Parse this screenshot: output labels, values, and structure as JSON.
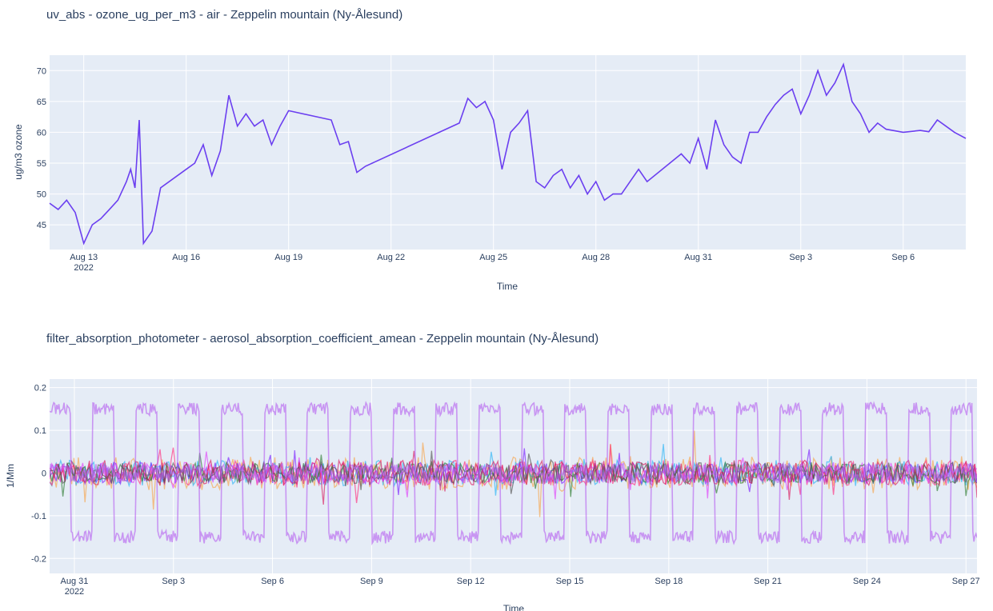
{
  "charts": [
    {
      "title": "uv_abs - ozone_ug_per_m3 - air - Zeppelin mountain (Ny-Ålesund)",
      "xlabel": "Time",
      "ylabel": "ug/m3 ozone"
    },
    {
      "title": "filter_absorption_photometer - aerosol_absorption_coefficient_amean - Zeppelin mountain (Ny-Ålesund)",
      "xlabel": "Time",
      "ylabel": "1/Mm"
    }
  ],
  "chart_data": [
    {
      "type": "line",
      "title": "uv_abs - ozone_ug_per_m3 - air - Zeppelin mountain (Ny-Ålesund)",
      "xlabel": "Time",
      "ylabel": "ug/m3 ozone",
      "xlim": [
        "2022-08-12",
        "2022-09-07 20:00"
      ],
      "ylim": [
        41,
        72.5
      ],
      "x_ticks": [
        {
          "date": "2022-08-13",
          "label": "Aug 13",
          "sublabel": "2022"
        },
        {
          "date": "2022-08-16",
          "label": "Aug 16"
        },
        {
          "date": "2022-08-19",
          "label": "Aug 19"
        },
        {
          "date": "2022-08-22",
          "label": "Aug 22"
        },
        {
          "date": "2022-08-25",
          "label": "Aug 25"
        },
        {
          "date": "2022-08-28",
          "label": "Aug 28"
        },
        {
          "date": "2022-08-31",
          "label": "Aug 31"
        },
        {
          "date": "2022-09-03",
          "label": "Sep 3"
        },
        {
          "date": "2022-09-06",
          "label": "Sep 6"
        }
      ],
      "y_ticks": [
        45,
        50,
        55,
        60,
        65,
        70
      ],
      "grid": true,
      "series": [
        {
          "color": "#6b3ff0",
          "x": [
            "2022-08-12 00:00",
            "2022-08-12 06:00",
            "2022-08-12 12:00",
            "2022-08-12 18:00",
            "2022-08-13 00:00",
            "2022-08-13 06:00",
            "2022-08-13 12:00",
            "2022-08-13 18:00",
            "2022-08-14 00:00",
            "2022-08-14 06:00",
            "2022-08-14 09:00",
            "2022-08-14 12:00",
            "2022-08-14 15:00",
            "2022-08-14 18:00",
            "2022-08-15 00:00",
            "2022-08-15 06:00",
            "2022-08-16 00:00",
            "2022-08-16 06:00",
            "2022-08-16 12:00",
            "2022-08-16 18:00",
            "2022-08-17 00:00",
            "2022-08-17 06:00",
            "2022-08-17 12:00",
            "2022-08-17 18:00",
            "2022-08-18 00:00",
            "2022-08-18 06:00",
            "2022-08-18 12:00",
            "2022-08-18 18:00",
            "2022-08-19 00:00",
            "2022-08-20 06:00",
            "2022-08-20 12:00",
            "2022-08-20 18:00",
            "2022-08-21 00:00",
            "2022-08-21 06:00",
            "2022-08-24 00:00",
            "2022-08-24 06:00",
            "2022-08-24 12:00",
            "2022-08-24 18:00",
            "2022-08-25 00:00",
            "2022-08-25 06:00",
            "2022-08-25 12:00",
            "2022-08-25 18:00",
            "2022-08-26 00:00",
            "2022-08-26 06:00",
            "2022-08-26 12:00",
            "2022-08-26 18:00",
            "2022-08-27 00:00",
            "2022-08-27 06:00",
            "2022-08-27 12:00",
            "2022-08-27 18:00",
            "2022-08-28 00:00",
            "2022-08-28 06:00",
            "2022-08-28 12:00",
            "2022-08-28 18:00",
            "2022-08-29 00:00",
            "2022-08-29 06:00",
            "2022-08-29 12:00",
            "2022-08-30 12:00",
            "2022-08-30 18:00",
            "2022-08-31 00:00",
            "2022-08-31 06:00",
            "2022-08-31 12:00",
            "2022-08-31 18:00",
            "2022-09-01 00:00",
            "2022-09-01 06:00",
            "2022-09-01 12:00",
            "2022-09-01 18:00",
            "2022-09-02 00:00",
            "2022-09-02 06:00",
            "2022-09-02 12:00",
            "2022-09-02 18:00",
            "2022-09-03 00:00",
            "2022-09-03 06:00",
            "2022-09-03 12:00",
            "2022-09-03 18:00",
            "2022-09-04 00:00",
            "2022-09-04 06:00",
            "2022-09-04 12:00",
            "2022-09-04 18:00",
            "2022-09-05 00:00",
            "2022-09-05 06:00",
            "2022-09-05 12:00",
            "2022-09-06 00:00",
            "2022-09-06 12:00",
            "2022-09-06 18:00",
            "2022-09-07 00:00",
            "2022-09-07 06:00",
            "2022-09-07 12:00",
            "2022-09-07 20:00"
          ],
          "values": [
            48.5,
            47.5,
            49,
            47,
            42,
            45,
            46,
            47.5,
            49,
            52,
            54,
            51,
            62,
            42,
            44,
            51,
            54,
            55,
            58,
            53,
            57,
            66,
            61,
            63,
            61,
            62,
            58,
            61,
            63.5,
            62,
            58,
            58.5,
            53.5,
            54.5,
            61.5,
            65.5,
            64,
            65,
            62,
            54,
            60,
            61.5,
            63.5,
            52,
            51,
            53,
            54,
            51,
            53,
            50,
            52,
            49,
            50,
            50,
            52,
            54,
            52,
            56.5,
            55,
            59,
            54,
            62,
            58,
            56,
            55,
            60,
            60,
            62.5,
            64.5,
            66,
            67,
            63,
            66,
            70,
            66,
            68,
            71,
            65,
            63,
            60,
            61.5,
            60.5,
            60,
            60.3,
            60.1,
            62,
            61,
            60,
            59
          ]
        }
      ]
    },
    {
      "type": "line",
      "title": "filter_absorption_photometer - aerosol_absorption_coefficient_amean - Zeppelin mountain (Ny-Ålesund)",
      "xlabel": "Time",
      "ylabel": "1/Mm",
      "xlim": [
        "2022-08-30 06:00",
        "2022-09-27 08:00"
      ],
      "ylim": [
        -0.235,
        0.22
      ],
      "x_ticks": [
        {
          "date": "2022-08-31",
          "label": "Aug 31",
          "sublabel": "2022"
        },
        {
          "date": "2022-09-03",
          "label": "Sep 3"
        },
        {
          "date": "2022-09-06",
          "label": "Sep 6"
        },
        {
          "date": "2022-09-09",
          "label": "Sep 9"
        },
        {
          "date": "2022-09-12",
          "label": "Sep 12"
        },
        {
          "date": "2022-09-15",
          "label": "Sep 15"
        },
        {
          "date": "2022-09-18",
          "label": "Sep 18"
        },
        {
          "date": "2022-09-21",
          "label": "Sep 21"
        },
        {
          "date": "2022-09-24",
          "label": "Sep 24"
        },
        {
          "date": "2022-09-27",
          "label": "Sep 27"
        }
      ],
      "y_ticks": [
        -0.2,
        -0.1,
        0,
        0.1,
        0.2
      ],
      "grid": true,
      "envelope_series": [
        {
          "color": "#b45cf0",
          "start": "2022-08-30 06:00",
          "period_days": 1.3,
          "amplitude": 0.15
        },
        {
          "color": "#b45cf0",
          "start": "2022-08-30 06:00",
          "period_days": 1.3,
          "amplitude": -0.15
        }
      ],
      "noise_series": [
        {
          "color": "#f7a54a",
          "amplitude": 0.04
        },
        {
          "color": "#29b6f6",
          "amplitude": 0.03
        },
        {
          "color": "#7b1fff",
          "amplitude": 0.025
        },
        {
          "color": "#ff2e7e",
          "amplitude": 0.03
        },
        {
          "color": "#e040fb",
          "amplitude": 0.025
        },
        {
          "color": "#2e7d32",
          "amplitude": 0.025
        },
        {
          "color": "#d81b60",
          "amplitude": 0.03
        },
        {
          "color": "#555555",
          "amplitude": 0.025
        }
      ]
    }
  ]
}
